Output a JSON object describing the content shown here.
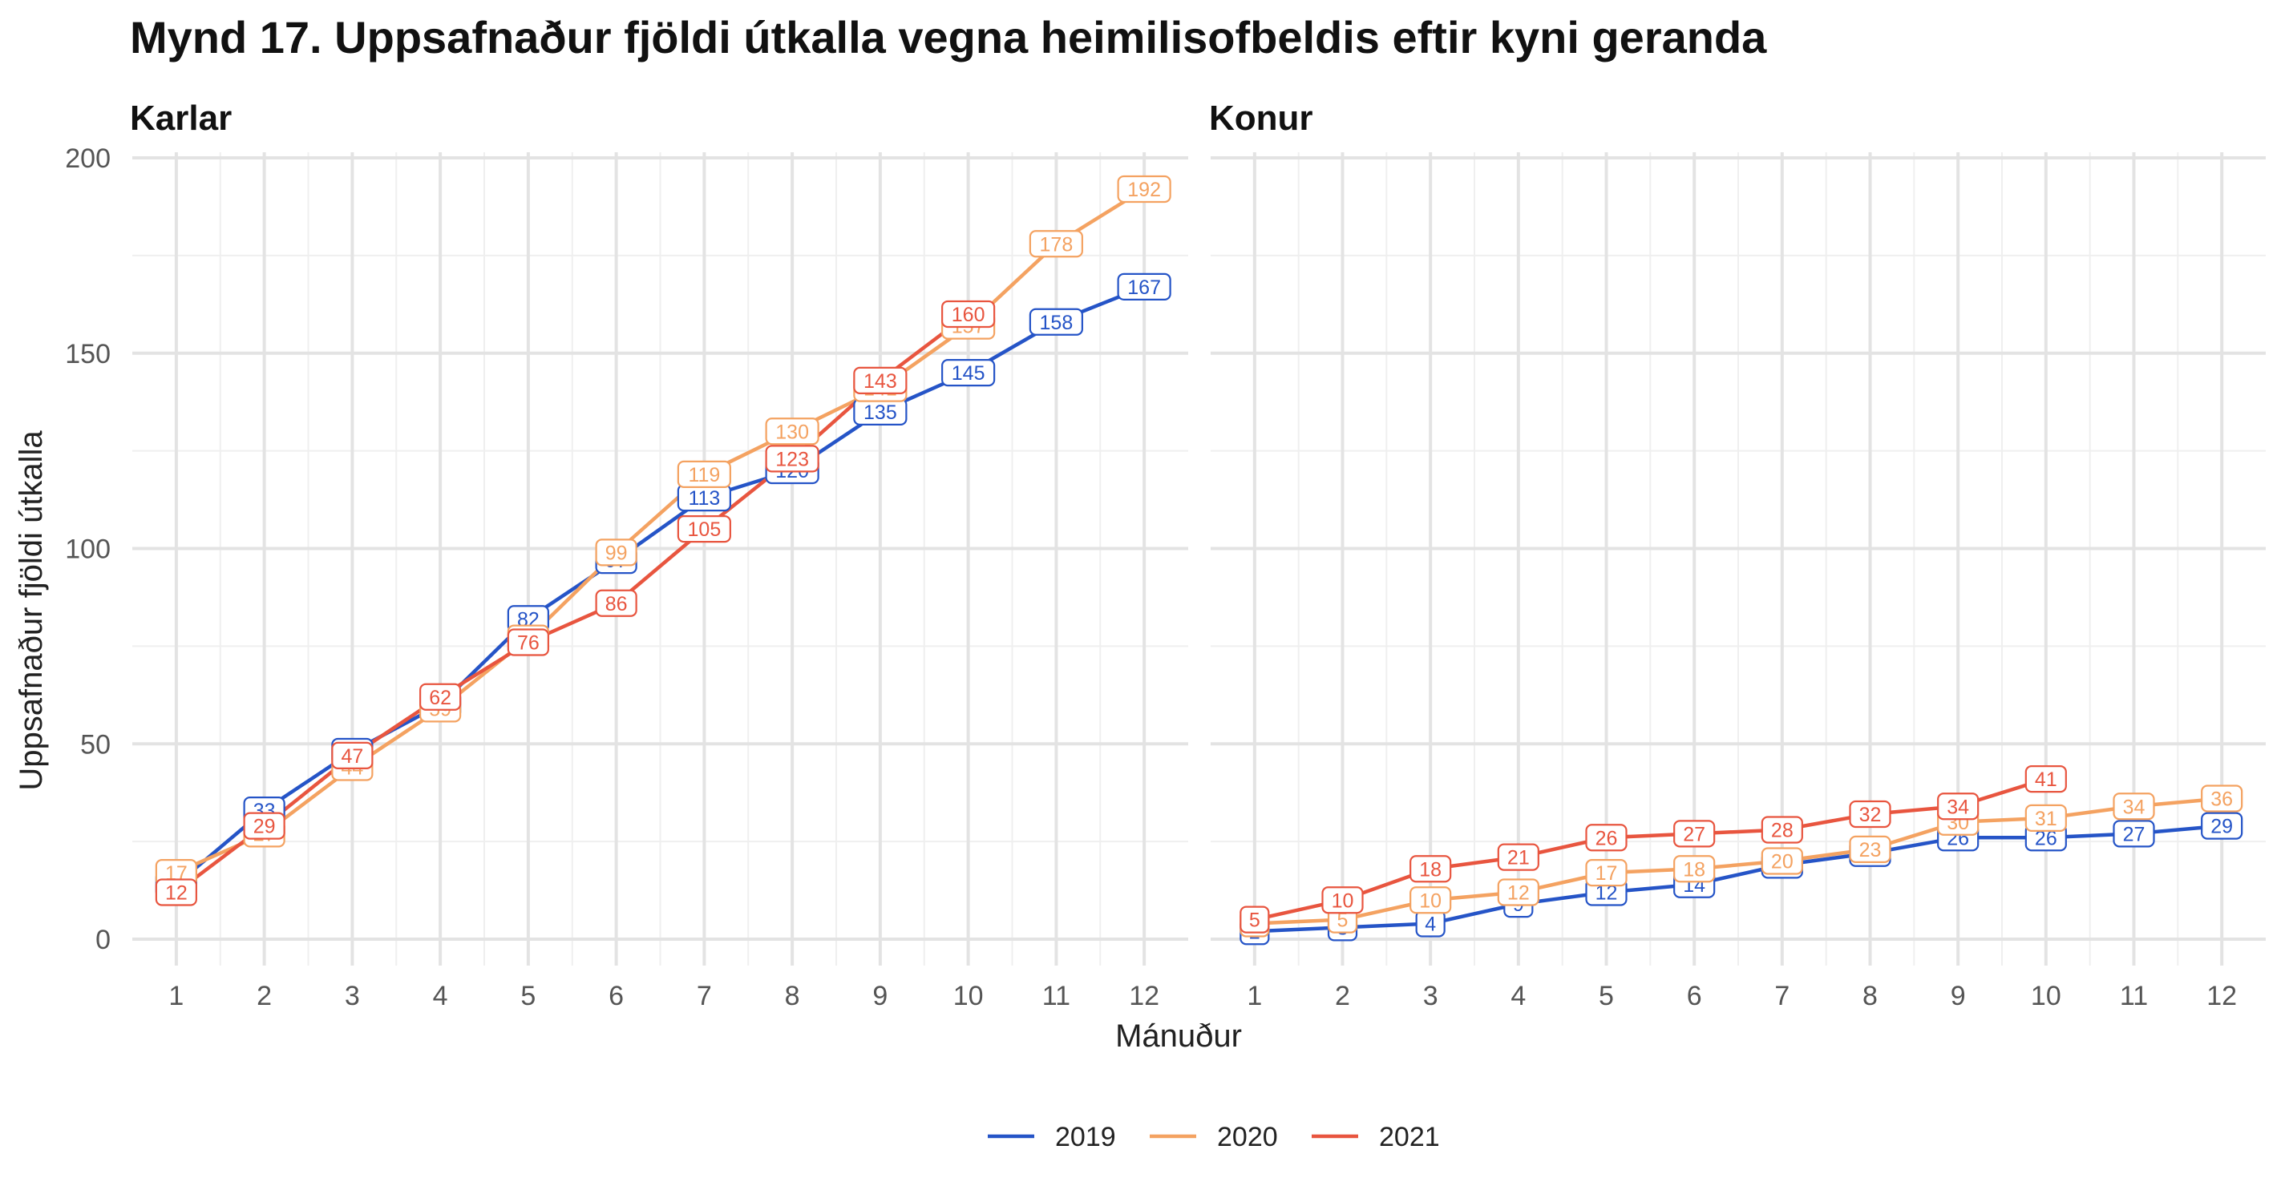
{
  "title": "Mynd 17. Uppsafnaður fjöldi útkalla vegna heimilisofbeldis eftir kyni geranda",
  "chart_data": {
    "type": "line",
    "title": "Mynd 17. Uppsafnaður fjöldi útkalla vegna heimilisofbeldis eftir kyni geranda",
    "xlabel": "Mánuður",
    "ylabel": "Uppsafnaður fjöldi útkalla",
    "x_ticks": [
      "1",
      "2",
      "3",
      "4",
      "5",
      "6",
      "7",
      "8",
      "9",
      "10",
      "11",
      "12"
    ],
    "y_ticks": [
      "0",
      "50",
      "100",
      "150",
      "200"
    ],
    "xlim": [
      0.5,
      12.5
    ],
    "ylim": [
      0,
      200
    ],
    "grid": true,
    "legend_position": "bottom",
    "legend": [
      {
        "name": "2019",
        "color": "#2554c7"
      },
      {
        "name": "2020",
        "color": "#f4a261"
      },
      {
        "name": "2021",
        "color": "#e8553f"
      }
    ],
    "panels": [
      {
        "name": "Karlar",
        "series": [
          {
            "name": "2019",
            "color": "#2554c7",
            "x": [
              1,
              2,
              3,
              4,
              5,
              6,
              7,
              8,
              9,
              10,
              11,
              12
            ],
            "values": [
              14,
              33,
              48,
              60,
              82,
              97,
              113,
              120,
              135,
              145,
              158,
              167
            ]
          },
          {
            "name": "2020",
            "color": "#f4a261",
            "x": [
              1,
              2,
              3,
              4,
              5,
              6,
              7,
              8,
              9,
              10,
              11,
              12
            ],
            "values": [
              17,
              27,
              44,
              59,
              77,
              99,
              119,
              130,
              141,
              157,
              178,
              192
            ]
          },
          {
            "name": "2021",
            "color": "#e8553f",
            "x": [
              1,
              2,
              3,
              4,
              5,
              6,
              7,
              8,
              9,
              10
            ],
            "values": [
              12,
              29,
              47,
              62,
              76,
              86,
              105,
              123,
              143,
              160
            ]
          }
        ]
      },
      {
        "name": "Konur",
        "series": [
          {
            "name": "2019",
            "color": "#2554c7",
            "x": [
              1,
              2,
              3,
              4,
              5,
              6,
              7,
              8,
              9,
              10,
              11,
              12
            ],
            "values": [
              2,
              3,
              4,
              9,
              12,
              14,
              19,
              22,
              26,
              26,
              27,
              29
            ]
          },
          {
            "name": "2020",
            "color": "#f4a261",
            "x": [
              1,
              2,
              3,
              4,
              5,
              6,
              7,
              8,
              9,
              10,
              11,
              12
            ],
            "values": [
              4,
              5,
              10,
              12,
              17,
              18,
              20,
              23,
              30,
              31,
              34,
              36
            ]
          },
          {
            "name": "2021",
            "color": "#e8553f",
            "x": [
              1,
              2,
              3,
              4,
              5,
              6,
              7,
              8,
              9,
              10
            ],
            "values": [
              5,
              10,
              18,
              21,
              26,
              27,
              28,
              32,
              34,
              41
            ]
          }
        ]
      }
    ]
  }
}
